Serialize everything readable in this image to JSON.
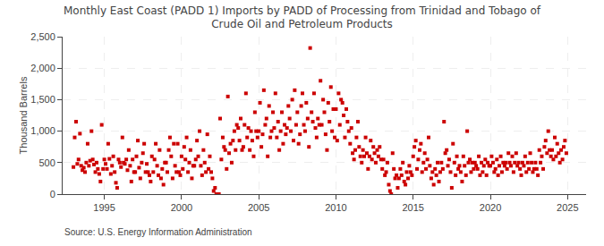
{
  "chart_data": {
    "type": "scatter",
    "title": "Monthly East Coast (PADD 1) Imports by PADD of Processing from Trinidad and Tobago of\nCrude Oil and Petroleum Products",
    "ylabel": "Thousand Barrels",
    "annotations": [
      "Source: U.S. Energy Information Administration"
    ],
    "color": "#cc0000",
    "marker": "square",
    "grid": true,
    "xlim": [
      1992.3,
      2026.2
    ],
    "xticks": [
      1995,
      2000,
      2005,
      2010,
      2015,
      2020,
      2025
    ],
    "ylim": [
      0,
      2500
    ],
    "yticks": [
      0,
      500,
      {
        "value": 1000,
        "label": "1,000"
      },
      {
        "value": 1500,
        "label": "1,500"
      },
      {
        "value": 2000,
        "label": "2,000"
      },
      {
        "value": 2500,
        "label": "2,500"
      }
    ],
    "x": [
      1993.0,
      1993.08,
      1993.17,
      1993.25,
      1993.33,
      1993.42,
      1993.5,
      1993.58,
      1993.67,
      1993.75,
      1993.83,
      1993.92,
      1994.0,
      1994.08,
      1994.17,
      1994.25,
      1994.33,
      1994.42,
      1994.5,
      1994.58,
      1994.67,
      1994.75,
      1994.83,
      1994.92,
      1995.0,
      1995.08,
      1995.17,
      1995.25,
      1995.33,
      1995.42,
      1995.5,
      1995.58,
      1995.67,
      1995.75,
      1995.83,
      1995.92,
      1996.0,
      1996.08,
      1996.17,
      1996.25,
      1996.33,
      1996.42,
      1996.5,
      1996.58,
      1996.67,
      1996.75,
      1996.83,
      1996.92,
      1997.0,
      1997.08,
      1997.17,
      1997.25,
      1997.33,
      1997.42,
      1997.5,
      1997.58,
      1997.67,
      1997.75,
      1997.83,
      1997.92,
      1998.0,
      1998.08,
      1998.17,
      1998.25,
      1998.33,
      1998.42,
      1998.5,
      1998.58,
      1998.67,
      1998.75,
      1998.83,
      1998.92,
      1999.0,
      1999.08,
      1999.17,
      1999.25,
      1999.33,
      1999.42,
      1999.5,
      1999.58,
      1999.67,
      1999.75,
      1999.83,
      1999.92,
      2000.0,
      2000.08,
      2000.17,
      2000.25,
      2000.33,
      2000.42,
      2000.5,
      2000.58,
      2000.67,
      2000.75,
      2000.83,
      2000.92,
      2001.0,
      2001.08,
      2001.17,
      2001.25,
      2001.33,
      2001.42,
      2001.5,
      2001.58,
      2001.67,
      2001.75,
      2001.83,
      2001.92,
      2002.0,
      2002.08,
      2002.17,
      2002.25,
      2002.33,
      2002.42,
      2002.5,
      2002.58,
      2002.67,
      2002.75,
      2002.83,
      2002.92,
      2003.0,
      2003.08,
      2003.17,
      2003.25,
      2003.33,
      2003.42,
      2003.5,
      2003.58,
      2003.67,
      2003.75,
      2003.83,
      2003.92,
      2004.0,
      2004.08,
      2004.17,
      2004.25,
      2004.33,
      2004.42,
      2004.5,
      2004.58,
      2004.67,
      2004.75,
      2004.83,
      2004.92,
      2005.0,
      2005.08,
      2005.17,
      2005.25,
      2005.33,
      2005.42,
      2005.5,
      2005.58,
      2005.67,
      2005.75,
      2005.83,
      2005.92,
      2006.0,
      2006.08,
      2006.17,
      2006.25,
      2006.33,
      2006.42,
      2006.5,
      2006.58,
      2006.67,
      2006.75,
      2006.83,
      2006.92,
      2007.0,
      2007.08,
      2007.17,
      2007.25,
      2007.33,
      2007.42,
      2007.5,
      2007.58,
      2007.67,
      2007.75,
      2007.83,
      2007.92,
      2008.0,
      2008.08,
      2008.17,
      2008.25,
      2008.33,
      2008.42,
      2008.5,
      2008.58,
      2008.67,
      2008.75,
      2008.83,
      2008.92,
      2009.0,
      2009.08,
      2009.17,
      2009.25,
      2009.33,
      2009.42,
      2009.5,
      2009.58,
      2009.67,
      2009.75,
      2009.83,
      2009.92,
      2010.0,
      2010.08,
      2010.17,
      2010.25,
      2010.33,
      2010.42,
      2010.5,
      2010.58,
      2010.67,
      2010.75,
      2010.83,
      2010.92,
      2011.0,
      2011.08,
      2011.17,
      2011.25,
      2011.33,
      2011.42,
      2011.5,
      2011.58,
      2011.67,
      2011.75,
      2011.83,
      2011.92,
      2012.0,
      2012.08,
      2012.17,
      2012.25,
      2012.33,
      2012.42,
      2012.5,
      2012.58,
      2012.67,
      2012.75,
      2012.83,
      2012.92,
      2013.0,
      2013.08,
      2013.17,
      2013.25,
      2013.33,
      2013.42,
      2013.5,
      2013.58,
      2013.67,
      2013.75,
      2013.83,
      2013.92,
      2014.0,
      2014.08,
      2014.17,
      2014.25,
      2014.33,
      2014.42,
      2014.5,
      2014.58,
      2014.67,
      2014.75,
      2014.83,
      2014.92,
      2015.0,
      2015.08,
      2015.17,
      2015.25,
      2015.33,
      2015.42,
      2015.5,
      2015.58,
      2015.67,
      2015.75,
      2015.83,
      2015.92,
      2016.0,
      2016.08,
      2016.17,
      2016.25,
      2016.33,
      2016.42,
      2016.5,
      2016.58,
      2016.67,
      2016.75,
      2016.83,
      2016.92,
      2017.0,
      2017.08,
      2017.17,
      2017.25,
      2017.33,
      2017.42,
      2017.5,
      2017.58,
      2017.67,
      2017.75,
      2017.83,
      2017.92,
      2018.0,
      2018.08,
      2018.17,
      2018.25,
      2018.33,
      2018.42,
      2018.5,
      2018.58,
      2018.67,
      2018.75,
      2018.83,
      2018.92,
      2019.0,
      2019.08,
      2019.17,
      2019.25,
      2019.33,
      2019.42,
      2019.5,
      2019.58,
      2019.67,
      2019.75,
      2019.83,
      2019.92,
      2020.0,
      2020.08,
      2020.17,
      2020.25,
      2020.33,
      2020.42,
      2020.5,
      2020.58,
      2020.67,
      2020.75,
      2020.83,
      2020.92,
      2021.0,
      2021.08,
      2021.17,
      2021.25,
      2021.33,
      2021.42,
      2021.5,
      2021.58,
      2021.67,
      2021.75,
      2021.83,
      2021.92,
      2022.0,
      2022.08,
      2022.17,
      2022.25,
      2022.33,
      2022.42,
      2022.5,
      2022.58,
      2022.67,
      2022.75,
      2022.83,
      2022.92,
      2023.0,
      2023.08,
      2023.17,
      2023.25,
      2023.33,
      2023.42,
      2023.5,
      2023.58,
      2023.67,
      2023.75,
      2023.83,
      2023.92,
      2024.0,
      2024.08,
      2024.17,
      2024.25,
      2024.33,
      2024.42,
      2024.5,
      2024.58,
      2024.67,
      2024.75,
      2024.83,
      2024.92
    ],
    "values": [
      430,
      900,
      1150,
      480,
      550,
      960,
      450,
      380,
      420,
      350,
      500,
      800,
      450,
      530,
      1000,
      550,
      470,
      350,
      500,
      400,
      320,
      200,
      1100,
      400,
      550,
      480,
      400,
      800,
      560,
      320,
      450,
      600,
      350,
      180,
      100,
      550,
      500,
      430,
      900,
      500,
      480,
      550,
      380,
      700,
      450,
      200,
      550,
      350,
      350,
      600,
      850,
      420,
      250,
      500,
      650,
      800,
      350,
      480,
      350,
      300,
      200,
      600,
      350,
      550,
      800,
      450,
      300,
      700,
      250,
      400,
      150,
      500,
      500,
      350,
      700,
      900,
      600,
      250,
      800,
      450,
      350,
      800,
      350,
      300,
      600,
      400,
      750,
      550,
      900,
      350,
      500,
      700,
      250,
      450,
      450,
      550,
      850,
      600,
      1000,
      450,
      300,
      700,
      500,
      350,
      950,
      400,
      600,
      350,
      250,
      50,
      100,
      0,
      0,
      0,
      1200,
      550,
      900,
      750,
      700,
      400,
      1550,
      650,
      800,
      500,
      850,
      1000,
      700,
      1100,
      1050,
      850,
      1200,
      700,
      750,
      1100,
      1600,
      900,
      1050,
      700,
      1000,
      850,
      600,
      1300,
      1000,
      900,
      1000,
      1450,
      750,
      950,
      1650,
      1100,
      1200,
      600,
      1400,
      900,
      1000,
      1300,
      1050,
      1600,
      900,
      1150,
      700,
      1000,
      1300,
      800,
      1100,
      950,
      1050,
      1400,
      1200,
      1000,
      1500,
      850,
      1650,
      1100,
      1300,
      800,
      950,
      1400,
      1600,
      1100,
      1000,
      1450,
      1200,
      750,
      2320,
      1300,
      1150,
      1600,
      1050,
      900,
      1200,
      1100,
      1800,
      1100,
      1500,
      1300,
      950,
      700,
      1450,
      1150,
      1700,
      1000,
      1350,
      900,
      1350,
      850,
      1600,
      1100,
      1500,
      1450,
      1250,
      900,
      1350,
      1150,
      1000,
      800,
      1050,
      650,
      550,
      700,
      900,
      1150,
      750,
      600,
      500,
      700,
      600,
      900,
      650,
      400,
      600,
      850,
      550,
      750,
      650,
      500,
      700,
      600,
      750,
      550,
      400,
      550,
      300,
      350,
      500,
      150,
      50,
      0,
      650,
      400,
      250,
      300,
      100,
      250,
      400,
      300,
      500,
      200,
      150,
      350,
      250,
      450,
      350,
      300,
      600,
      750,
      850,
      400,
      550,
      700,
      800,
      350,
      500,
      650,
      400,
      550,
      900,
      450,
      250,
      350,
      150,
      400,
      300,
      500,
      200,
      350,
      500,
      400,
      1150,
      650,
      700,
      450,
      550,
      350,
      100,
      800,
      500,
      300,
      600,
      400,
      450,
      350,
      200,
      600,
      450,
      300,
      1000,
      500,
      550,
      350,
      500,
      400,
      500,
      450,
      400,
      600,
      300,
      500,
      350,
      450,
      550,
      300,
      500,
      450,
      450,
      600,
      500,
      350,
      400,
      550,
      300,
      450,
      600,
      350,
      500,
      450,
      500,
      400,
      650,
      500,
      450,
      600,
      350,
      500,
      650,
      450,
      500,
      400,
      300,
      500,
      450,
      600,
      350,
      500,
      400,
      650,
      500,
      350,
      400,
      500,
      400,
      300,
      700,
      500,
      600,
      400,
      750,
      850,
      650,
      1000,
      700,
      600,
      700,
      550,
      900,
      600,
      800,
      650,
      500,
      700,
      550,
      750,
      850,
      650
    ]
  }
}
